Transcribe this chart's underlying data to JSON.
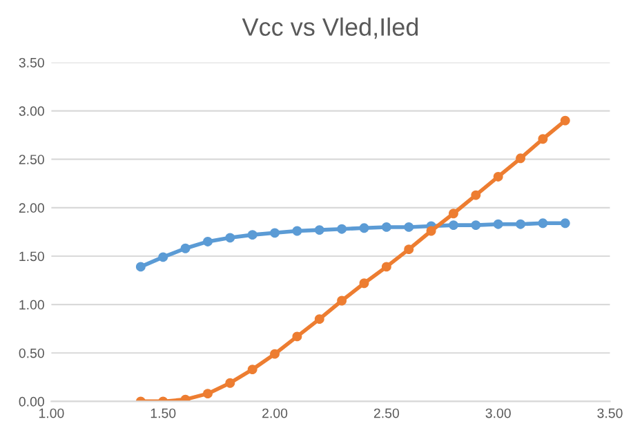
{
  "chart_data": {
    "type": "line",
    "title": "Vcc vs Vled,Iled",
    "x": [
      1.4,
      1.5,
      1.6,
      1.7,
      1.8,
      1.9,
      2.0,
      2.1,
      2.2,
      2.3,
      2.4,
      2.5,
      2.6,
      2.7,
      2.8,
      2.9,
      3.0,
      3.1,
      3.2,
      3.3
    ],
    "series": [
      {
        "color": "#5b9bd5",
        "values": [
          1.39,
          1.49,
          1.58,
          1.65,
          1.69,
          1.72,
          1.74,
          1.76,
          1.77,
          1.78,
          1.79,
          1.8,
          1.8,
          1.81,
          1.82,
          1.82,
          1.83,
          1.83,
          1.84,
          1.84
        ]
      },
      {
        "color": "#ed7d31",
        "values": [
          0,
          0,
          0.02,
          0.08,
          0.19,
          0.33,
          0.49,
          0.67,
          0.85,
          1.04,
          1.22,
          1.39,
          1.57,
          1.76,
          1.94,
          2.13,
          2.32,
          2.51,
          2.71,
          2.9
        ]
      }
    ],
    "xlim": [
      1.0,
      3.5
    ],
    "xticks": [
      {
        "value": 1.0,
        "label": "1.00"
      },
      {
        "value": 1.5,
        "label": "1.50"
      },
      {
        "value": 2.0,
        "label": "2.00"
      },
      {
        "value": 2.5,
        "label": "2.50"
      },
      {
        "value": 3.0,
        "label": "3.00"
      },
      {
        "value": 3.5,
        "label": "3.50"
      }
    ],
    "ylim": [
      0,
      3.5
    ],
    "yticks": [
      {
        "value": 0,
        "label": "0.00"
      },
      {
        "value": 0.5,
        "label": "0.50"
      },
      {
        "value": 1.0,
        "label": "1.00"
      },
      {
        "value": 1.5,
        "label": "1.50"
      },
      {
        "value": 2.0,
        "label": "2.00"
      },
      {
        "value": 2.5,
        "label": "2.50"
      },
      {
        "value": 3.0,
        "label": "3.00"
      },
      {
        "value": 3.5,
        "label": "3.50"
      }
    ],
    "grid": "y",
    "marker": "circle",
    "line_style": "solid"
  }
}
